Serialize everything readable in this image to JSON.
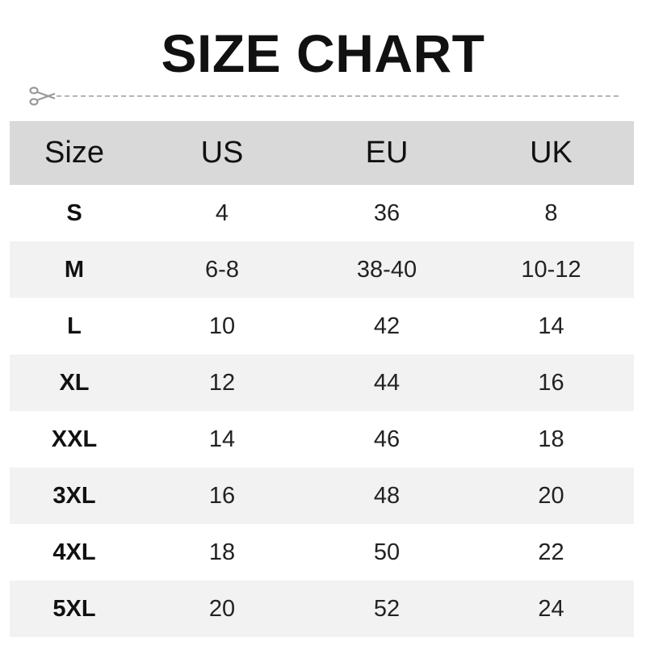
{
  "title": "SIZE CHART",
  "icons": {
    "cut_line": "scissors-icon"
  },
  "colors": {
    "header_bg": "#d9d9d9",
    "alt_row_bg": "#f2f2f2",
    "dashed_line": "#b5b5b5"
  },
  "table": {
    "headers": [
      "Size",
      "US",
      "EU",
      "UK"
    ],
    "rows": [
      [
        "S",
        "4",
        "36",
        "8"
      ],
      [
        "M",
        "6-8",
        "38-40",
        "10-12"
      ],
      [
        "L",
        "10",
        "42",
        "14"
      ],
      [
        "XL",
        "12",
        "44",
        "16"
      ],
      [
        "XXL",
        "14",
        "46",
        "18"
      ],
      [
        "3XL",
        "16",
        "48",
        "20"
      ],
      [
        "4XL",
        "18",
        "50",
        "22"
      ],
      [
        "5XL",
        "20",
        "52",
        "24"
      ]
    ]
  }
}
